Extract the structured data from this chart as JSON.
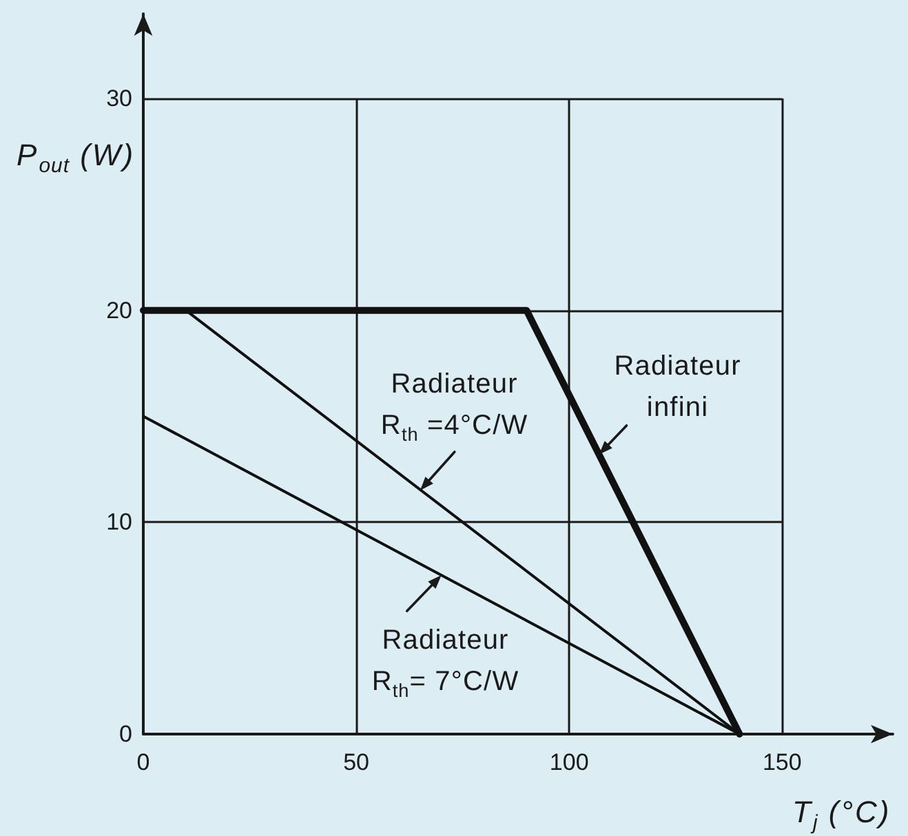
{
  "chart_data": {
    "type": "line",
    "xlabel": "T$_{j}$ (°C)",
    "ylabel": "P$_{out}$ (W)",
    "series": [
      {
        "color": "#111111",
        "x": [
          0,
          90,
          140
        ],
        "values": [
          20,
          20,
          0
        ]
      },
      {
        "color": "#111111",
        "x": [
          10,
          140
        ],
        "values": [
          20,
          0
        ]
      },
      {
        "color": "#111111",
        "x": [
          0,
          140
        ],
        "values": [
          15,
          0
        ]
      }
    ],
    "xlim": [
      0,
      176
    ],
    "ylim": [
      0,
      34
    ],
    "xticks": [
      0,
      50,
      100,
      150
    ],
    "yticks": [
      0,
      10,
      20,
      30
    ],
    "grid": true,
    "line_style": "solid",
    "annotations": [
      {
        "text": "Radiateur\nR$_{th}$ =4°C/W",
        "x": 65,
        "y": 11.5
      },
      {
        "text": "Radiateur\ninfini",
        "x": 107,
        "y": 13.2
      },
      {
        "text": "Radiateur\nR$_{th}$= 7°C/W",
        "x": 70,
        "y": 7.5
      }
    ]
  }
}
